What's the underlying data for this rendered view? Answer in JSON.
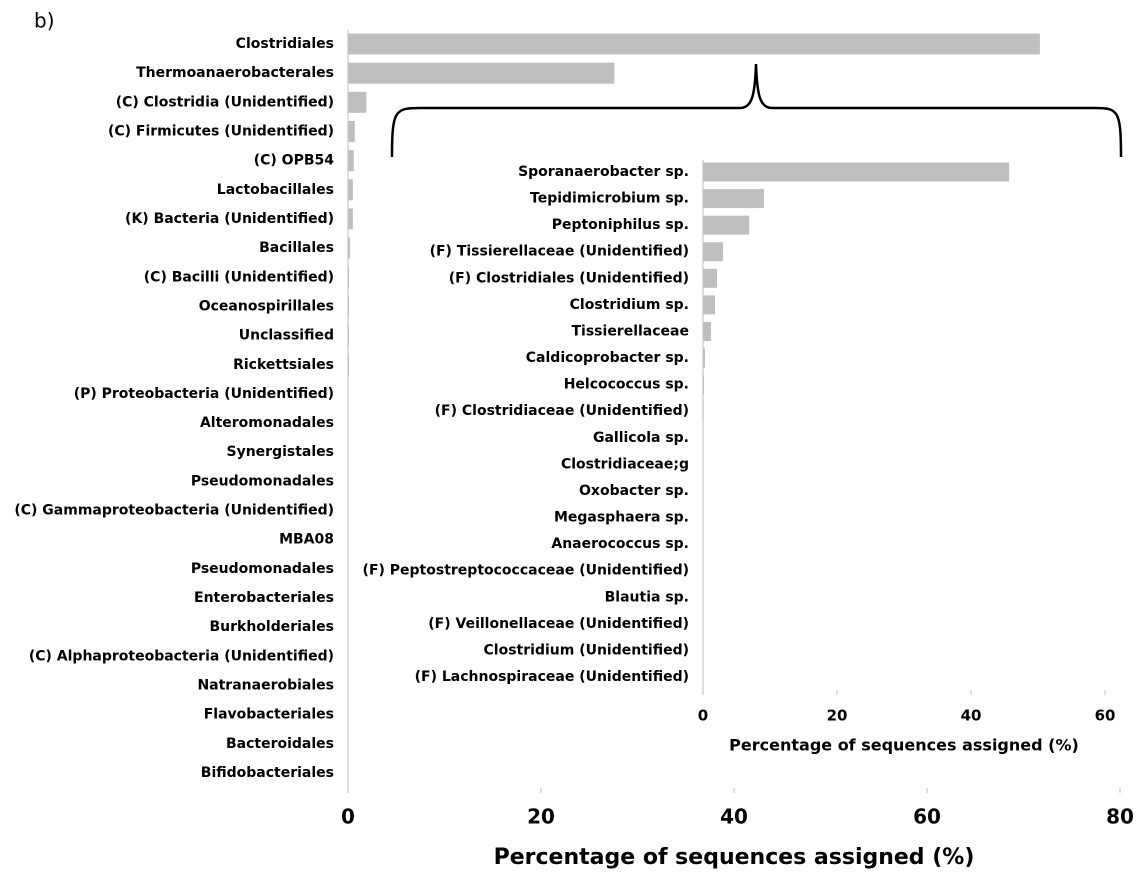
{
  "panel_label": "b)",
  "chart_data": [
    {
      "type": "bar",
      "orientation": "horizontal",
      "x_label": "Percentage of sequences assigned (%)",
      "categories": [
        "Clostridiales",
        "Thermoanaerobacterales",
        "(C) Clostridia (Unidentified)",
        "(C) Firmicutes (Unidentified)",
        "(C) OPB54",
        "Lactobacillales",
        "(K) Bacteria (Unidentified)",
        "Bacillales",
        "(C) Bacilli (Unidentified)",
        "Oceanospirillales",
        "Unclassified",
        "Rickettsiales",
        "(P) Proteobacteria (Unidentified)",
        "Alteromonadales",
        "Synergistales",
        "Pseudomonadales",
        "(C) Gammaproteobacteria (Unidentified)",
        "MBA08",
        "Pseudomonadales",
        "Enterobacteriales",
        "Burkholderiales",
        "(C) Alphaproteobacteria (Unidentified)",
        "Natranaerobiales",
        "Flavobacteriales",
        "Bacteroidales",
        "Bifidobacteriales"
      ],
      "values": [
        71.7,
        27.6,
        1.9,
        0.7,
        0.6,
        0.5,
        0.5,
        0.2,
        0.1,
        0.1,
        0.1,
        0.1,
        0.05,
        0.05,
        0.05,
        0.05,
        0.05,
        0.05,
        0.05,
        0.05,
        0.05,
        0.05,
        0.05,
        0.05,
        0.05,
        0.05
      ],
      "color": "#bfbfbf",
      "xlim": [
        0,
        80
      ],
      "xticks": [
        0,
        20,
        40,
        60,
        80
      ]
    },
    {
      "type": "bar",
      "orientation": "horizontal",
      "x_label": "Percentage of sequences assigned (%)",
      "categories": [
        "Sporanaerobacter sp.",
        "Tepidimicrobium sp.",
        "Peptoniphilus sp.",
        "(F) Tissierellaceae (Unidentified)",
        "(F) Clostridiales (Unidentified)",
        "Clostridium sp.",
        "Tissierellaceae",
        "Caldicoprobacter sp.",
        "Helcococcus sp.",
        "(F) Clostridiaceae (Unidentified)",
        "Gallicola sp.",
        "Clostridiaceae;g",
        "Oxobacter sp.",
        "Megasphaera sp.",
        "Anaerococcus sp.",
        "(F) Peptostreptococcaceae (Unidentified)",
        "Blautia sp.",
        "(F) Veillonellaceae (Unidentified)",
        "Clostridium (Unidentified)",
        "(F) Lachnospiraceae (Unidentified)"
      ],
      "values": [
        45.7,
        9.1,
        6.9,
        3.0,
        2.1,
        1.8,
        1.2,
        0.3,
        0.15,
        0.1,
        0.05,
        0.05,
        0.05,
        0.05,
        0.05,
        0.05,
        0.05,
        0.05,
        0.05,
        0.05
      ],
      "color": "#bfbfbf",
      "xlim": [
        0,
        60
      ],
      "xticks": [
        0,
        20,
        40,
        60
      ]
    }
  ]
}
